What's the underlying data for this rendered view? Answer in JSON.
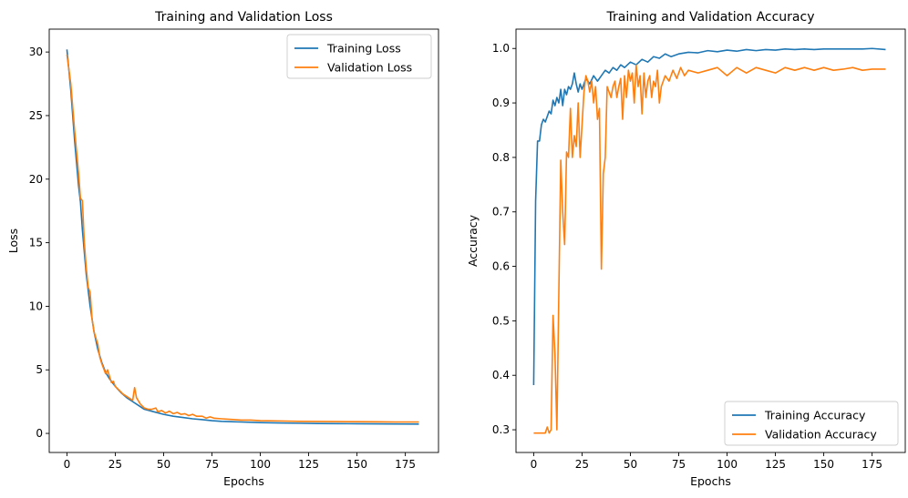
{
  "chart_data": [
    {
      "type": "line",
      "title": "Training and Validation Loss",
      "xlabel": "Epochs",
      "ylabel": "Loss",
      "xlim": [
        -9.15,
        192.15
      ],
      "ylim": [
        -1.5,
        31.8
      ],
      "xticks": [
        0,
        25,
        50,
        75,
        100,
        125,
        150,
        175
      ],
      "yticks": [
        0,
        5,
        10,
        15,
        20,
        25,
        30
      ],
      "grid": false,
      "legend_position": "upper right",
      "series": [
        {
          "name": "Training Loss",
          "color": "#1f77b4",
          "points": [
            [
              0,
              30.2
            ],
            [
              2,
              27.0
            ],
            [
              4,
              23.0
            ],
            [
              6,
              19.5
            ],
            [
              7,
              18.2
            ],
            [
              8,
              16.0
            ],
            [
              10,
              12.5
            ],
            [
              12,
              10.0
            ],
            [
              14,
              8.0
            ],
            [
              16,
              6.6
            ],
            [
              18,
              5.6
            ],
            [
              20,
              4.8
            ],
            [
              22,
              4.3
            ],
            [
              25,
              3.7
            ],
            [
              28,
              3.2
            ],
            [
              31,
              2.8
            ],
            [
              34,
              2.5
            ],
            [
              37,
              2.2
            ],
            [
              40,
              1.9
            ],
            [
              45,
              1.7
            ],
            [
              50,
              1.5
            ],
            [
              55,
              1.35
            ],
            [
              60,
              1.25
            ],
            [
              65,
              1.15
            ],
            [
              70,
              1.08
            ],
            [
              75,
              1.0
            ],
            [
              80,
              0.95
            ],
            [
              90,
              0.9
            ],
            [
              100,
              0.85
            ],
            [
              110,
              0.82
            ],
            [
              120,
              0.8
            ],
            [
              130,
              0.78
            ],
            [
              140,
              0.77
            ],
            [
              150,
              0.76
            ],
            [
              160,
              0.75
            ],
            [
              170,
              0.74
            ],
            [
              182,
              0.73
            ]
          ]
        },
        {
          "name": "Validation Loss",
          "color": "#ff7f0e",
          "points": [
            [
              0,
              29.8
            ],
            [
              2,
              27.5
            ],
            [
              4,
              23.8
            ],
            [
              6,
              20.5
            ],
            [
              7,
              18.5
            ],
            [
              8,
              18.3
            ],
            [
              9,
              15.0
            ],
            [
              10,
              13.0
            ],
            [
              11,
              11.5
            ],
            [
              12,
              11.1
            ],
            [
              13,
              9.0
            ],
            [
              14,
              8.0
            ],
            [
              16,
              7.0
            ],
            [
              17,
              6.0
            ],
            [
              18,
              5.5
            ],
            [
              20,
              4.7
            ],
            [
              21,
              5.0
            ],
            [
              22,
              4.5
            ],
            [
              23,
              4.0
            ],
            [
              24,
              4.1
            ],
            [
              25,
              3.7
            ],
            [
              27,
              3.4
            ],
            [
              29,
              3.1
            ],
            [
              31,
              2.9
            ],
            [
              33,
              2.7
            ],
            [
              34,
              2.6
            ],
            [
              35,
              3.6
            ],
            [
              36,
              2.8
            ],
            [
              38,
              2.3
            ],
            [
              40,
              2.0
            ],
            [
              42,
              1.9
            ],
            [
              44,
              1.9
            ],
            [
              46,
              2.0
            ],
            [
              47,
              1.7
            ],
            [
              49,
              1.8
            ],
            [
              51,
              1.6
            ],
            [
              53,
              1.75
            ],
            [
              55,
              1.55
            ],
            [
              57,
              1.65
            ],
            [
              59,
              1.5
            ],
            [
              61,
              1.55
            ],
            [
              63,
              1.4
            ],
            [
              65,
              1.5
            ],
            [
              67,
              1.35
            ],
            [
              70,
              1.35
            ],
            [
              72,
              1.2
            ],
            [
              74,
              1.3
            ],
            [
              76,
              1.2
            ],
            [
              80,
              1.15
            ],
            [
              85,
              1.1
            ],
            [
              90,
              1.05
            ],
            [
              95,
              1.05
            ],
            [
              100,
              1.0
            ],
            [
              110,
              0.98
            ],
            [
              120,
              0.95
            ],
            [
              130,
              0.94
            ],
            [
              140,
              0.93
            ],
            [
              150,
              0.92
            ],
            [
              160,
              0.91
            ],
            [
              170,
              0.9
            ],
            [
              182,
              0.9
            ]
          ]
        }
      ]
    },
    {
      "type": "line",
      "title": "Training and Validation Accuracy",
      "xlabel": "Epochs",
      "ylabel": "Accuracy",
      "xlim": [
        -9.15,
        192.15
      ],
      "ylim": [
        0.2583,
        1.0355
      ],
      "xticks": [
        0,
        25,
        50,
        75,
        100,
        125,
        150,
        175
      ],
      "yticks": [
        0.3,
        0.4,
        0.5,
        0.6,
        0.7,
        0.8,
        0.9,
        1.0
      ],
      "grid": false,
      "legend_position": "lower right",
      "series": [
        {
          "name": "Training Accuracy",
          "color": "#1f77b4",
          "points": [
            [
              0,
              0.382
            ],
            [
              1,
              0.72
            ],
            [
              2,
              0.83
            ],
            [
              3,
              0.83
            ],
            [
              4,
              0.86
            ],
            [
              5,
              0.87
            ],
            [
              6,
              0.865
            ],
            [
              7,
              0.875
            ],
            [
              8,
              0.885
            ],
            [
              9,
              0.88
            ],
            [
              10,
              0.905
            ],
            [
              11,
              0.895
            ],
            [
              12,
              0.91
            ],
            [
              13,
              0.9
            ],
            [
              14,
              0.925
            ],
            [
              15,
              0.895
            ],
            [
              16,
              0.925
            ],
            [
              17,
              0.915
            ],
            [
              18,
              0.93
            ],
            [
              19,
              0.925
            ],
            [
              20,
              0.935
            ],
            [
              21,
              0.955
            ],
            [
              22,
              0.935
            ],
            [
              23,
              0.92
            ],
            [
              24,
              0.935
            ],
            [
              25,
              0.925
            ],
            [
              27,
              0.945
            ],
            [
              29,
              0.935
            ],
            [
              31,
              0.95
            ],
            [
              33,
              0.94
            ],
            [
              35,
              0.95
            ],
            [
              37,
              0.96
            ],
            [
              39,
              0.955
            ],
            [
              41,
              0.965
            ],
            [
              43,
              0.96
            ],
            [
              45,
              0.97
            ],
            [
              47,
              0.965
            ],
            [
              50,
              0.975
            ],
            [
              53,
              0.97
            ],
            [
              56,
              0.98
            ],
            [
              59,
              0.975
            ],
            [
              62,
              0.985
            ],
            [
              65,
              0.982
            ],
            [
              68,
              0.99
            ],
            [
              71,
              0.985
            ],
            [
              75,
              0.99
            ],
            [
              80,
              0.993
            ],
            [
              85,
              0.992
            ],
            [
              90,
              0.996
            ],
            [
              95,
              0.994
            ],
            [
              100,
              0.997
            ],
            [
              105,
              0.995
            ],
            [
              110,
              0.998
            ],
            [
              115,
              0.996
            ],
            [
              120,
              0.998
            ],
            [
              125,
              0.997
            ],
            [
              130,
              0.999
            ],
            [
              135,
              0.998
            ],
            [
              140,
              0.999
            ],
            [
              145,
              0.998
            ],
            [
              150,
              0.999
            ],
            [
              160,
              0.999
            ],
            [
              170,
              0.999
            ],
            [
              175,
              1.0
            ],
            [
              182,
              0.998
            ]
          ]
        },
        {
          "name": "Validation Accuracy",
          "color": "#ff7f0e",
          "points": [
            [
              0,
              0.294
            ],
            [
              2,
              0.294
            ],
            [
              4,
              0.294
            ],
            [
              6,
              0.294
            ],
            [
              7,
              0.305
            ],
            [
              8,
              0.294
            ],
            [
              9,
              0.3
            ],
            [
              10,
              0.51
            ],
            [
              11,
              0.44
            ],
            [
              12,
              0.3
            ],
            [
              13,
              0.55
            ],
            [
              14,
              0.795
            ],
            [
              15,
              0.7
            ],
            [
              16,
              0.64
            ],
            [
              17,
              0.81
            ],
            [
              18,
              0.8
            ],
            [
              19,
              0.89
            ],
            [
              20,
              0.8
            ],
            [
              21,
              0.84
            ],
            [
              22,
              0.82
            ],
            [
              23,
              0.9
            ],
            [
              24,
              0.8
            ],
            [
              25,
              0.86
            ],
            [
              26,
              0.92
            ],
            [
              27,
              0.95
            ],
            [
              28,
              0.94
            ],
            [
              29,
              0.92
            ],
            [
              30,
              0.94
            ],
            [
              31,
              0.9
            ],
            [
              32,
              0.93
            ],
            [
              33,
              0.87
            ],
            [
              34,
              0.89
            ],
            [
              35,
              0.595
            ],
            [
              36,
              0.77
            ],
            [
              37,
              0.8
            ],
            [
              38,
              0.93
            ],
            [
              39,
              0.92
            ],
            [
              40,
              0.91
            ],
            [
              41,
              0.93
            ],
            [
              42,
              0.94
            ],
            [
              43,
              0.91
            ],
            [
              44,
              0.93
            ],
            [
              45,
              0.945
            ],
            [
              46,
              0.87
            ],
            [
              47,
              0.95
            ],
            [
              48,
              0.91
            ],
            [
              49,
              0.96
            ],
            [
              50,
              0.94
            ],
            [
              51,
              0.955
            ],
            [
              52,
              0.9
            ],
            [
              53,
              0.97
            ],
            [
              54,
              0.93
            ],
            [
              55,
              0.95
            ],
            [
              56,
              0.88
            ],
            [
              57,
              0.955
            ],
            [
              58,
              0.91
            ],
            [
              59,
              0.94
            ],
            [
              60,
              0.95
            ],
            [
              61,
              0.91
            ],
            [
              62,
              0.94
            ],
            [
              63,
              0.93
            ],
            [
              64,
              0.96
            ],
            [
              65,
              0.9
            ],
            [
              66,
              0.93
            ],
            [
              68,
              0.95
            ],
            [
              70,
              0.94
            ],
            [
              72,
              0.96
            ],
            [
              74,
              0.945
            ],
            [
              76,
              0.965
            ],
            [
              78,
              0.95
            ],
            [
              80,
              0.96
            ],
            [
              85,
              0.955
            ],
            [
              90,
              0.96
            ],
            [
              95,
              0.965
            ],
            [
              100,
              0.95
            ],
            [
              105,
              0.965
            ],
            [
              110,
              0.955
            ],
            [
              115,
              0.965
            ],
            [
              120,
              0.96
            ],
            [
              125,
              0.955
            ],
            [
              130,
              0.965
            ],
            [
              135,
              0.96
            ],
            [
              140,
              0.965
            ],
            [
              145,
              0.96
            ],
            [
              150,
              0.965
            ],
            [
              155,
              0.96
            ],
            [
              160,
              0.962
            ],
            [
              165,
              0.965
            ],
            [
              170,
              0.96
            ],
            [
              175,
              0.962
            ],
            [
              182,
              0.962
            ]
          ]
        }
      ]
    }
  ]
}
